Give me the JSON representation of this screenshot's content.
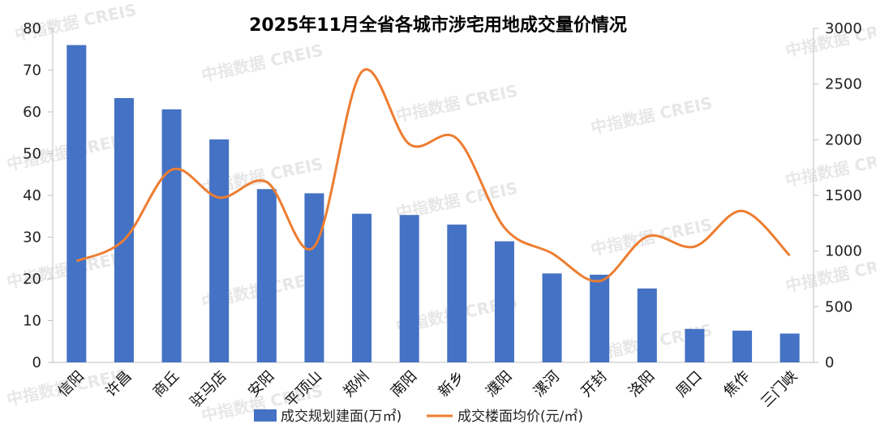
{
  "chart_data": {
    "type": "bar",
    "title": "2025年11月全省各城市涉宅用地成交量价情况",
    "categories": [
      "信阳",
      "许昌",
      "商丘",
      "驻马店",
      "安阳",
      "平顶山",
      "郑州",
      "南阳",
      "新乡",
      "濮阳",
      "漯河",
      "开封",
      "洛阳",
      "周口",
      "焦作",
      "三门峡"
    ],
    "series": [
      {
        "name": "成交规划建面(万㎡)",
        "type": "bar",
        "axis": "left",
        "color": "#4472C4",
        "values": [
          76,
          63.3,
          60.6,
          53.4,
          41.5,
          40.5,
          35.6,
          35.3,
          33,
          29,
          21.3,
          21,
          17.7,
          8,
          7.6,
          6.9
        ]
      },
      {
        "name": "成交楼面均价(元/㎡)",
        "type": "line",
        "axis": "right",
        "color": "#ED7D31",
        "values": [
          910,
          1100,
          1730,
          1480,
          1620,
          1040,
          2610,
          1960,
          2010,
          1210,
          980,
          730,
          1130,
          1040,
          1360,
          960
        ]
      }
    ],
    "left_axis": {
      "min": 0,
      "max": 80,
      "ticks": [
        "0",
        "10",
        "20",
        "30",
        "40",
        "50",
        "60",
        "70",
        "80"
      ]
    },
    "right_axis": {
      "min": 0,
      "max": 3000,
      "ticks": [
        "0",
        "500",
        "1000",
        "1500",
        "2000",
        "2500",
        "3000"
      ]
    },
    "legend_position": "bottom",
    "grid": false
  },
  "watermark": {
    "text_cn": "中指数据",
    "text_en": "CREIS",
    "color": "#d8d8d8"
  }
}
